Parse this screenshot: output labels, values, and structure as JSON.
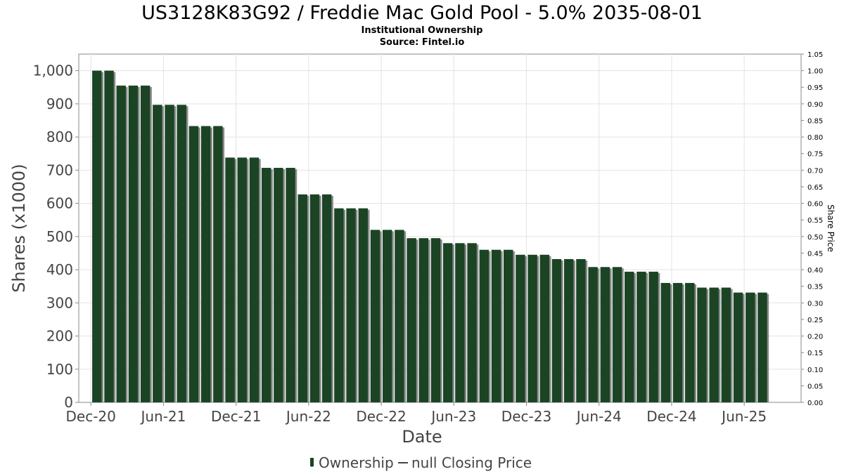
{
  "chart_data": {
    "type": "bar",
    "title": "US3128K83G92 / Freddie Mac Gold Pool - 5.0% 2035-08-01",
    "subtitle_lines": [
      "Institutional Ownership",
      "Source: Fintel.io"
    ],
    "xlabel": "Date",
    "ylabel": "Shares (x1000)",
    "y2label": "Share Price",
    "ylim": [
      0,
      1050
    ],
    "y2lim": [
      0,
      1.05
    ],
    "y_ticks": [
      0,
      100,
      200,
      300,
      400,
      500,
      600,
      700,
      800,
      900,
      1000
    ],
    "y_tick_labels": [
      "0",
      "100",
      "200",
      "300",
      "400",
      "500",
      "600",
      "700",
      "800",
      "900",
      "1,000"
    ],
    "y2_tick_labels": [
      "0.00",
      "0.05",
      "0.10",
      "0.15",
      "0.20",
      "0.25",
      "0.30",
      "0.35",
      "0.40",
      "0.45",
      "0.50",
      "0.55",
      "0.60",
      "0.65",
      "0.70",
      "0.75",
      "0.80",
      "0.85",
      "0.90",
      "0.95",
      "1.00",
      "1.05"
    ],
    "x_tick_labels": [
      "Dec-20",
      "Jun-21",
      "Dec-21",
      "Jun-22",
      "Dec-22",
      "Jun-23",
      "Dec-23",
      "Jun-24",
      "Dec-24",
      "Jun-25"
    ],
    "x_tick_months": [
      0,
      6,
      12,
      18,
      24,
      30,
      36,
      42,
      48,
      54
    ],
    "x_range_months": [
      -1.0,
      58.7
    ],
    "bar_months": [
      0.5,
      1.5,
      2.5,
      3.5,
      4.5,
      5.5,
      6.5,
      7.5,
      8.5,
      9.5,
      10.5,
      11.5,
      12.5,
      13.5,
      14.5,
      15.5,
      16.5,
      17.5,
      18.5,
      19.5,
      20.5,
      21.5,
      22.5,
      23.5,
      24.5,
      25.5,
      26.5,
      27.5,
      28.5,
      29.5,
      30.5,
      31.5,
      32.5,
      33.5,
      34.5,
      35.5,
      36.5,
      37.5,
      38.5,
      39.5,
      40.5,
      41.5,
      42.5,
      43.5,
      44.5,
      45.5,
      46.5,
      47.5,
      48.5,
      49.5,
      50.5,
      51.5,
      52.5,
      53.5,
      54.5,
      55.5
    ],
    "series": [
      {
        "name": "Ownership",
        "color": "#1b4424",
        "shadow_color": "#8a8a8a",
        "values": [
          1000,
          1000,
          955,
          955,
          955,
          897,
          897,
          897,
          833,
          833,
          833,
          738,
          738,
          738,
          707,
          707,
          707,
          627,
          627,
          627,
          585,
          585,
          585,
          520,
          520,
          520,
          495,
          495,
          495,
          480,
          480,
          480,
          460,
          460,
          460,
          445,
          445,
          445,
          432,
          432,
          432,
          408,
          408,
          408,
          394,
          394,
          394,
          360,
          360,
          360,
          346,
          346,
          346,
          331,
          331,
          331
        ]
      }
    ],
    "legend": {
      "placement": "bottom-center",
      "items": [
        {
          "label": "Ownership",
          "symbol": "bar"
        },
        {
          "label": "null Closing Price",
          "symbol": "line"
        }
      ]
    },
    "grid": true
  }
}
